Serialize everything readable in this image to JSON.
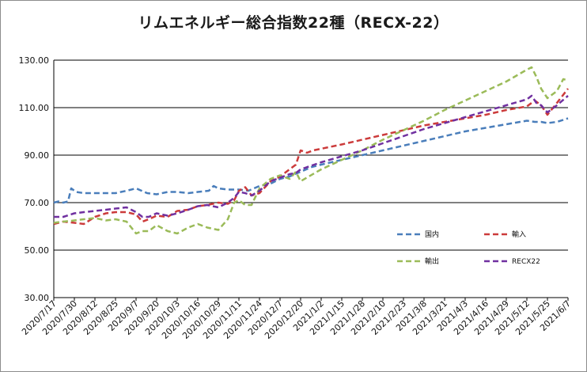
{
  "chart_data": {
    "type": "line",
    "title": "リムエネルギー総合指数22種（RECX-22）",
    "xlabel": "",
    "ylabel": "",
    "ylim": [
      30,
      130
    ],
    "yticks": [
      30,
      50,
      70,
      90,
      110,
      130
    ],
    "ytick_labels": [
      "30.00",
      "50.00",
      "70.00",
      "90.00",
      "110.00",
      "130.00"
    ],
    "grid": "horizontal",
    "legend_position": "lower-right",
    "x_tick_labels": [
      "2020/7/17",
      "2020/7/30",
      "2020/8/12",
      "2020/8/25",
      "2020/9/7",
      "2020/9/20",
      "2020/10/3",
      "2020/10/16",
      "2020/10/29",
      "2020/11/11",
      "2020/11/24",
      "2020/12/7",
      "2020/12/20",
      "2021/1/2",
      "2021/1/15",
      "2021/1/28",
      "2021/2/10",
      "2021/2/23",
      "2021/3/8",
      "2021/3/21",
      "2021/4/3",
      "2021/4/16",
      "2021/4/29",
      "2021/5/12",
      "2021/5/25",
      "2021/6/7"
    ],
    "series": [
      {
        "name": "国内",
        "color": "#4a7ebb",
        "points": [
          [
            "2020-07-17",
            70
          ],
          [
            "2020-07-20",
            70.5
          ],
          [
            "2020-07-23",
            70
          ],
          [
            "2020-07-26",
            70.5
          ],
          [
            "2020-07-28",
            76
          ],
          [
            "2020-07-31",
            74.5
          ],
          [
            "2020-08-05",
            74
          ],
          [
            "2020-08-12",
            74
          ],
          [
            "2020-08-19",
            74
          ],
          [
            "2020-08-25",
            74
          ],
          [
            "2020-09-01",
            75
          ],
          [
            "2020-09-07",
            76
          ],
          [
            "2020-09-14",
            74
          ],
          [
            "2020-09-20",
            73.5
          ],
          [
            "2020-09-27",
            74.5
          ],
          [
            "2020-10-03",
            74.5
          ],
          [
            "2020-10-10",
            74
          ],
          [
            "2020-10-16",
            74.5
          ],
          [
            "2020-10-23",
            75
          ],
          [
            "2020-10-26",
            77
          ],
          [
            "2020-10-29",
            76
          ],
          [
            "2020-11-04",
            75.5
          ],
          [
            "2020-11-11",
            75.5
          ],
          [
            "2020-11-17",
            75
          ],
          [
            "2020-11-24",
            77
          ],
          [
            "2020-12-01",
            78
          ],
          [
            "2020-12-07",
            80
          ],
          [
            "2020-12-13",
            81
          ],
          [
            "2020-12-20",
            83
          ],
          [
            "2020-12-27",
            85
          ],
          [
            "2021-01-02",
            86
          ],
          [
            "2021-01-15",
            88
          ],
          [
            "2021-01-28",
            90
          ],
          [
            "2021-02-10",
            92
          ],
          [
            "2021-02-23",
            94
          ],
          [
            "2021-03-08",
            96
          ],
          [
            "2021-03-21",
            98
          ],
          [
            "2021-04-03",
            100
          ],
          [
            "2021-04-16",
            101.5
          ],
          [
            "2021-04-29",
            103
          ],
          [
            "2021-05-12",
            104.5
          ],
          [
            "2021-05-17",
            104
          ],
          [
            "2021-05-21",
            104
          ],
          [
            "2021-05-25",
            103.5
          ],
          [
            "2021-05-31",
            104
          ],
          [
            "2021-06-07",
            105.5
          ]
        ]
      },
      {
        "name": "輸入",
        "color": "#cc3b3b",
        "points": [
          [
            "2020-07-17",
            61
          ],
          [
            "2020-07-23",
            62
          ],
          [
            "2020-07-30",
            61.5
          ],
          [
            "2020-08-05",
            61
          ],
          [
            "2020-08-12",
            64
          ],
          [
            "2020-08-19",
            65.5
          ],
          [
            "2020-08-25",
            66
          ],
          [
            "2020-09-01",
            66
          ],
          [
            "2020-09-07",
            65
          ],
          [
            "2020-09-11",
            62
          ],
          [
            "2020-09-15",
            63
          ],
          [
            "2020-09-20",
            64.5
          ],
          [
            "2020-09-27",
            64
          ],
          [
            "2020-10-03",
            66.5
          ],
          [
            "2020-10-10",
            67
          ],
          [
            "2020-10-16",
            68.5
          ],
          [
            "2020-10-22",
            69
          ],
          [
            "2020-10-29",
            70
          ],
          [
            "2020-11-04",
            69.5
          ],
          [
            "2020-11-08",
            71
          ],
          [
            "2020-11-11",
            75
          ],
          [
            "2020-11-15",
            76.5
          ],
          [
            "2020-11-19",
            73
          ],
          [
            "2020-11-24",
            74
          ],
          [
            "2020-12-01",
            79
          ],
          [
            "2020-12-07",
            81
          ],
          [
            "2020-12-13",
            84
          ],
          [
            "2020-12-17",
            86
          ],
          [
            "2020-12-20",
            92
          ],
          [
            "2020-12-24",
            91
          ],
          [
            "2020-12-28",
            92
          ],
          [
            "2021-01-15",
            94.5
          ],
          [
            "2021-01-28",
            96.5
          ],
          [
            "2021-02-10",
            98.5
          ],
          [
            "2021-02-23",
            100.5
          ],
          [
            "2021-03-08",
            102.5
          ],
          [
            "2021-03-21",
            104
          ],
          [
            "2021-04-03",
            105.5
          ],
          [
            "2021-04-16",
            107
          ],
          [
            "2021-04-29",
            109
          ],
          [
            "2021-05-12",
            110.5
          ],
          [
            "2021-05-17",
            113
          ],
          [
            "2021-05-21",
            111
          ],
          [
            "2021-05-25",
            107
          ],
          [
            "2021-05-31",
            112
          ],
          [
            "2021-06-07",
            118
          ]
        ]
      },
      {
        "name": "輸出",
        "color": "#9bbb59",
        "points": [
          [
            "2020-07-17",
            61.5
          ],
          [
            "2020-07-23",
            62
          ],
          [
            "2020-07-30",
            62.5
          ],
          [
            "2020-08-05",
            63
          ],
          [
            "2020-08-12",
            63.5
          ],
          [
            "2020-08-19",
            62.5
          ],
          [
            "2020-08-25",
            63
          ],
          [
            "2020-09-01",
            62
          ],
          [
            "2020-09-07",
            57
          ],
          [
            "2020-09-11",
            58
          ],
          [
            "2020-09-15",
            58
          ],
          [
            "2020-09-20",
            60.5
          ],
          [
            "2020-09-27",
            58
          ],
          [
            "2020-10-03",
            57
          ],
          [
            "2020-10-10",
            59.5
          ],
          [
            "2020-10-16",
            61
          ],
          [
            "2020-10-22",
            59.5
          ],
          [
            "2020-10-29",
            58.5
          ],
          [
            "2020-11-04",
            63
          ],
          [
            "2020-11-08",
            70
          ],
          [
            "2020-11-11",
            71
          ],
          [
            "2020-11-15",
            69
          ],
          [
            "2020-11-19",
            69
          ],
          [
            "2020-11-24",
            76
          ],
          [
            "2020-12-01",
            80
          ],
          [
            "2020-12-07",
            81.5
          ],
          [
            "2020-12-13",
            80
          ],
          [
            "2020-12-17",
            83
          ],
          [
            "2020-12-20",
            79
          ],
          [
            "2021-01-02",
            84
          ],
          [
            "2021-01-15",
            88
          ],
          [
            "2021-01-28",
            92
          ],
          [
            "2021-02-10",
            96.5
          ],
          [
            "2021-02-23",
            100.5
          ],
          [
            "2021-03-08",
            104.5
          ],
          [
            "2021-03-21",
            109
          ],
          [
            "2021-04-03",
            113
          ],
          [
            "2021-04-16",
            117
          ],
          [
            "2021-04-29",
            121
          ],
          [
            "2021-05-12",
            126
          ],
          [
            "2021-05-15",
            127
          ],
          [
            "2021-05-18",
            123
          ],
          [
            "2021-05-21",
            118
          ],
          [
            "2021-05-25",
            114
          ],
          [
            "2021-05-31",
            117
          ],
          [
            "2021-06-04",
            122
          ],
          [
            "2021-06-07",
            121.5
          ]
        ]
      },
      {
        "name": "RECX22",
        "color": "#7030a0",
        "points": [
          [
            "2020-07-17",
            64
          ],
          [
            "2020-07-23",
            64
          ],
          [
            "2020-07-30",
            65.5
          ],
          [
            "2020-08-05",
            66
          ],
          [
            "2020-08-12",
            66.5
          ],
          [
            "2020-08-19",
            67
          ],
          [
            "2020-08-25",
            67.5
          ],
          [
            "2020-09-01",
            68
          ],
          [
            "2020-09-07",
            66
          ],
          [
            "2020-09-11",
            64
          ],
          [
            "2020-09-15",
            64
          ],
          [
            "2020-09-20",
            65.5
          ],
          [
            "2020-09-27",
            64.5
          ],
          [
            "2020-10-03",
            65.5
          ],
          [
            "2020-10-10",
            67
          ],
          [
            "2020-10-16",
            68.5
          ],
          [
            "2020-10-22",
            69
          ],
          [
            "2020-10-29",
            68
          ],
          [
            "2020-11-04",
            70
          ],
          [
            "2020-11-08",
            72
          ],
          [
            "2020-11-11",
            74.5
          ],
          [
            "2020-11-15",
            74
          ],
          [
            "2020-11-19",
            73
          ],
          [
            "2020-11-24",
            75
          ],
          [
            "2020-12-01",
            79
          ],
          [
            "2020-12-07",
            80.5
          ],
          [
            "2020-12-13",
            82
          ],
          [
            "2020-12-17",
            82.5
          ],
          [
            "2020-12-20",
            84
          ],
          [
            "2021-01-02",
            87
          ],
          [
            "2021-01-15",
            89.5
          ],
          [
            "2021-01-28",
            92
          ],
          [
            "2021-02-10",
            95
          ],
          [
            "2021-02-23",
            98
          ],
          [
            "2021-03-08",
            101
          ],
          [
            "2021-03-21",
            103.5
          ],
          [
            "2021-04-03",
            106
          ],
          [
            "2021-04-16",
            108.5
          ],
          [
            "2021-04-29",
            111
          ],
          [
            "2021-05-12",
            113.5
          ],
          [
            "2021-05-15",
            115
          ],
          [
            "2021-05-18",
            112
          ],
          [
            "2021-05-21",
            111
          ],
          [
            "2021-05-25",
            108
          ],
          [
            "2021-05-31",
            111
          ],
          [
            "2021-06-07",
            115
          ]
        ]
      }
    ]
  }
}
